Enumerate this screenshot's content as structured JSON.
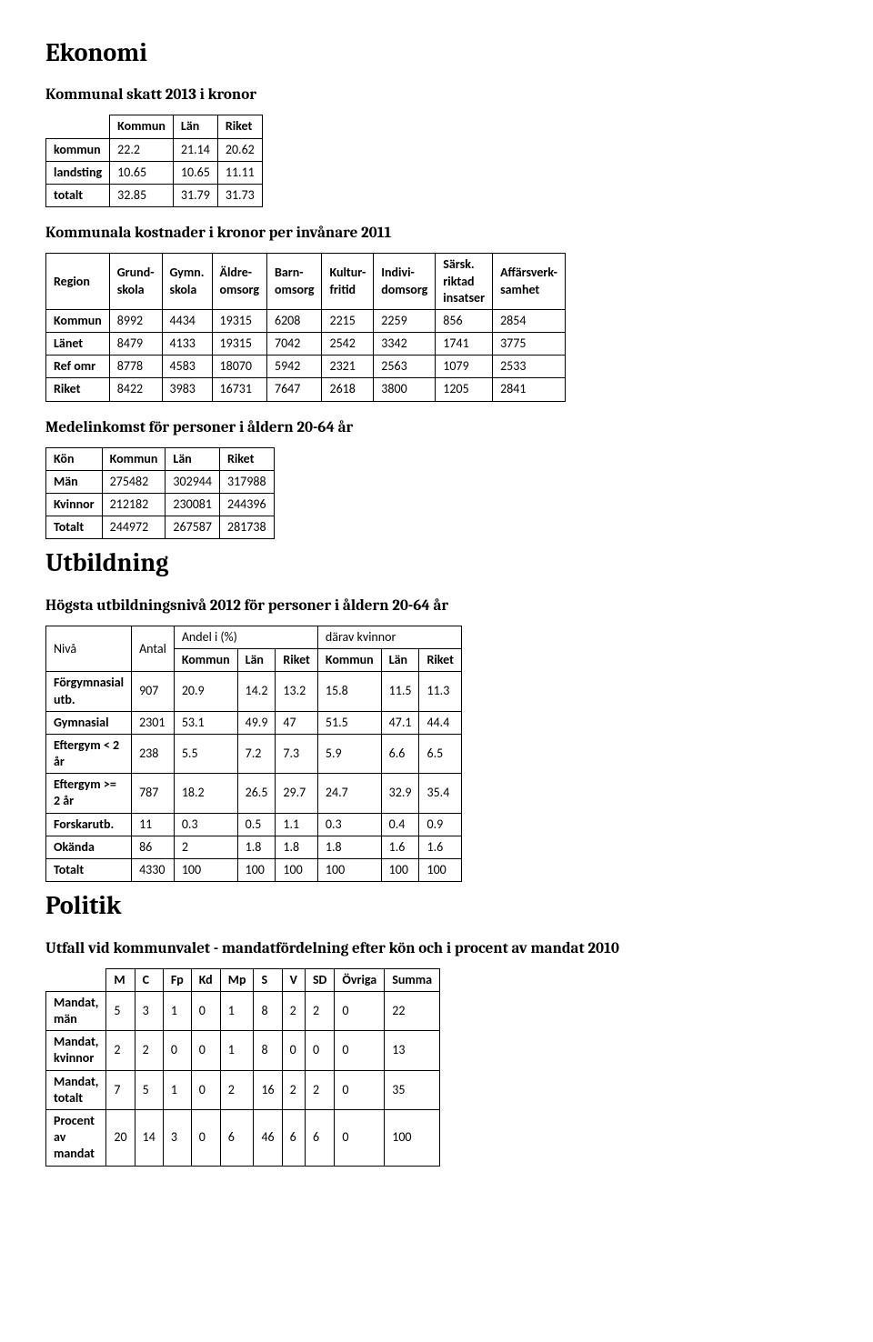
{
  "sections": {
    "ekonomi": "Ekonomi",
    "utbildning": "Utbildning",
    "politik": "Politik"
  },
  "tax": {
    "title": "Kommunal skatt 2013 i kronor",
    "columns": [
      "Kommun",
      "Län",
      "Riket"
    ],
    "rows": [
      {
        "label": "kommun",
        "v": [
          "22.2",
          "21.14",
          "20.62"
        ]
      },
      {
        "label": "landsting",
        "v": [
          "10.65",
          "10.65",
          "11.11"
        ]
      },
      {
        "label": "totalt",
        "v": [
          "32.85",
          "31.79",
          "31.73"
        ]
      }
    ]
  },
  "costs": {
    "title": "Kommunala kostnader i kronor per invånare 2011",
    "columns": [
      "Region",
      "Grund-\nskola",
      "Gymn.\nskola",
      "Äldre-\nomsorg",
      "Barn-\nomsorg",
      "Kultur-\nfritid",
      "Indivi-\ndomsorg",
      "Särsk.\nriktad\ninsatser",
      "Affärsverk-\nsamhet"
    ],
    "rows": [
      {
        "label": "Kommun",
        "v": [
          "8992",
          "4434",
          "19315",
          "6208",
          "2215",
          "2259",
          "856",
          "2854"
        ]
      },
      {
        "label": "Länet",
        "v": [
          "8479",
          "4133",
          "19315",
          "7042",
          "2542",
          "3342",
          "1741",
          "3775"
        ]
      },
      {
        "label": "Ref omr",
        "v": [
          "8778",
          "4583",
          "18070",
          "5942",
          "2321",
          "2563",
          "1079",
          "2533"
        ]
      },
      {
        "label": "Riket",
        "v": [
          "8422",
          "3983",
          "16731",
          "7647",
          "2618",
          "3800",
          "1205",
          "2841"
        ]
      }
    ]
  },
  "income": {
    "title": "Medelinkomst för personer i åldern 20-64 år",
    "columns": [
      "Kön",
      "Kommun",
      "Län",
      "Riket"
    ],
    "rows": [
      {
        "label": "Män",
        "v": [
          "275482",
          "302944",
          "317988"
        ]
      },
      {
        "label": "Kvinnor",
        "v": [
          "212182",
          "230081",
          "244396"
        ]
      },
      {
        "label": "Totalt",
        "v": [
          "244972",
          "267587",
          "281738"
        ]
      }
    ]
  },
  "edu": {
    "title": "Högsta utbildningsnivå 2012 för personer i åldern 20-64 år",
    "top": {
      "niva": "Nivå",
      "antal": "Antal",
      "andel": "Andel i (%)",
      "kvinnor": "därav kvinnor"
    },
    "sub": [
      "Kommun",
      "Län",
      "Riket",
      "Kommun",
      "Län",
      "Riket"
    ],
    "rows": [
      {
        "label": "Förgymnasial\nutb.",
        "v": [
          "907",
          "20.9",
          "14.2",
          "13.2",
          "15.8",
          "11.5",
          "11.3"
        ]
      },
      {
        "label": "Gymnasial",
        "v": [
          "2301",
          "53.1",
          "49.9",
          "47",
          "51.5",
          "47.1",
          "44.4"
        ]
      },
      {
        "label": "Eftergym < 2\når",
        "v": [
          "238",
          "5.5",
          "7.2",
          "7.3",
          "5.9",
          "6.6",
          "6.5"
        ]
      },
      {
        "label": "Eftergym >=\n2 år",
        "v": [
          "787",
          "18.2",
          "26.5",
          "29.7",
          "24.7",
          "32.9",
          "35.4"
        ]
      },
      {
        "label": "Forskarutb.",
        "v": [
          "11",
          "0.3",
          "0.5",
          "1.1",
          "0.3",
          "0.4",
          "0.9"
        ]
      },
      {
        "label": "Okända",
        "v": [
          "86",
          "2",
          "1.8",
          "1.8",
          "1.8",
          "1.6",
          "1.6"
        ]
      },
      {
        "label": "Totalt",
        "v": [
          "4330",
          "100",
          "100",
          "100",
          "100",
          "100",
          "100"
        ]
      }
    ]
  },
  "politics": {
    "title": "Utfall vid kommunvalet - mandatfördelning efter kön och i procent av mandat 2010",
    "columns": [
      "M",
      "C",
      "Fp",
      "Kd",
      "Mp",
      "S",
      "V",
      "SD",
      "Övriga",
      "Summa"
    ],
    "rows": [
      {
        "label": "Mandat,\nmän",
        "v": [
          "5",
          "3",
          "1",
          "0",
          "1",
          "8",
          "2",
          "2",
          "0",
          "22"
        ]
      },
      {
        "label": "Mandat,\nkvinnor",
        "v": [
          "2",
          "2",
          "0",
          "0",
          "1",
          "8",
          "0",
          "0",
          "0",
          "13"
        ]
      },
      {
        "label": "Mandat,\ntotalt",
        "v": [
          "7",
          "5",
          "1",
          "0",
          "2",
          "16",
          "2",
          "2",
          "0",
          "35"
        ]
      },
      {
        "label": "Procent\nav\nmandat",
        "v": [
          "20",
          "14",
          "3",
          "0",
          "6",
          "46",
          "6",
          "6",
          "0",
          "100"
        ]
      }
    ]
  }
}
